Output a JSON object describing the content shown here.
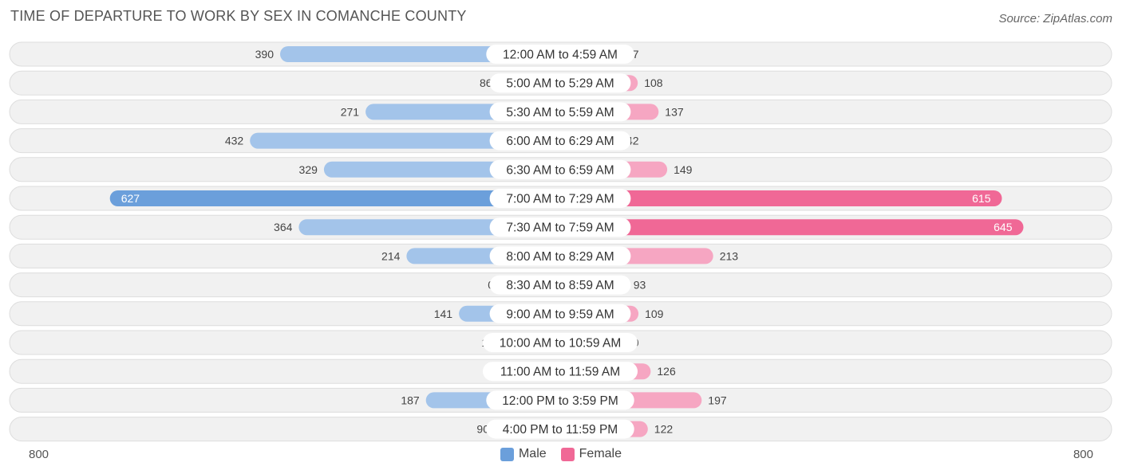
{
  "title": "TIME OF DEPARTURE TO WORK BY SEX IN COMANCHE COUNTY",
  "source": "Source: ZipAtlas.com",
  "colors": {
    "male_light": "#a3c4ea",
    "male_dark": "#6b9fdb",
    "female_light": "#f6a6c2",
    "female_dark": "#f06896",
    "row_bg": "#f1f1f1",
    "row_border": "#dddddd"
  },
  "chart_data": {
    "type": "bar",
    "orientation": "horizontal-diverging",
    "categories": [
      "12:00 AM to 4:59 AM",
      "5:00 AM to 5:29 AM",
      "5:30 AM to 5:59 AM",
      "6:00 AM to 6:29 AM",
      "6:30 AM to 6:59 AM",
      "7:00 AM to 7:29 AM",
      "7:30 AM to 7:59 AM",
      "8:00 AM to 8:29 AM",
      "8:30 AM to 8:59 AM",
      "9:00 AM to 9:59 AM",
      "10:00 AM to 10:59 AM",
      "11:00 AM to 11:59 AM",
      "12:00 PM to 3:59 PM",
      "4:00 PM to 11:59 PM"
    ],
    "series": [
      {
        "name": "Male",
        "values": [
          390,
          86,
          271,
          432,
          329,
          627,
          364,
          214,
          0,
          141,
          15,
          0,
          187,
          90
        ]
      },
      {
        "name": "Female",
        "values": [
          37,
          108,
          137,
          42,
          149,
          615,
          645,
          213,
          93,
          109,
          40,
          126,
          197,
          122
        ]
      }
    ],
    "axis_min_label": "800",
    "axis_max_label": "800",
    "xlim": [
      -800,
      800
    ],
    "legend": {
      "position": "bottom-center",
      "items": [
        "Male",
        "Female"
      ]
    },
    "grid": false
  }
}
